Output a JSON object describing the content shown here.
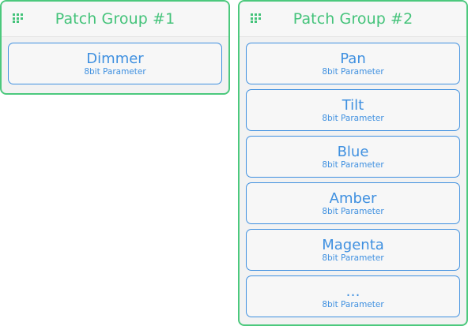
{
  "groups": [
    {
      "title": "Patch Group #1",
      "parameters": [
        {
          "name": "Dimmer",
          "subtitle": "8bit Parameter"
        }
      ]
    },
    {
      "title": "Patch Group #2",
      "parameters": [
        {
          "name": "Pan",
          "subtitle": "8bit Parameter"
        },
        {
          "name": "Tilt",
          "subtitle": "8bit Parameter"
        },
        {
          "name": "Blue",
          "subtitle": "8bit Parameter"
        },
        {
          "name": "Amber",
          "subtitle": "8bit Parameter"
        },
        {
          "name": "Magenta",
          "subtitle": "8bit Parameter"
        },
        {
          "name": "…",
          "subtitle": "8bit Parameter"
        }
      ]
    }
  ],
  "colors": {
    "group_border": "#4cc97d",
    "group_title": "#44c37a",
    "parameter_accent": "#3f90e0",
    "panel_background": "#f2f2f2"
  },
  "icons": {
    "group_handle": "grid-dots-icon"
  }
}
